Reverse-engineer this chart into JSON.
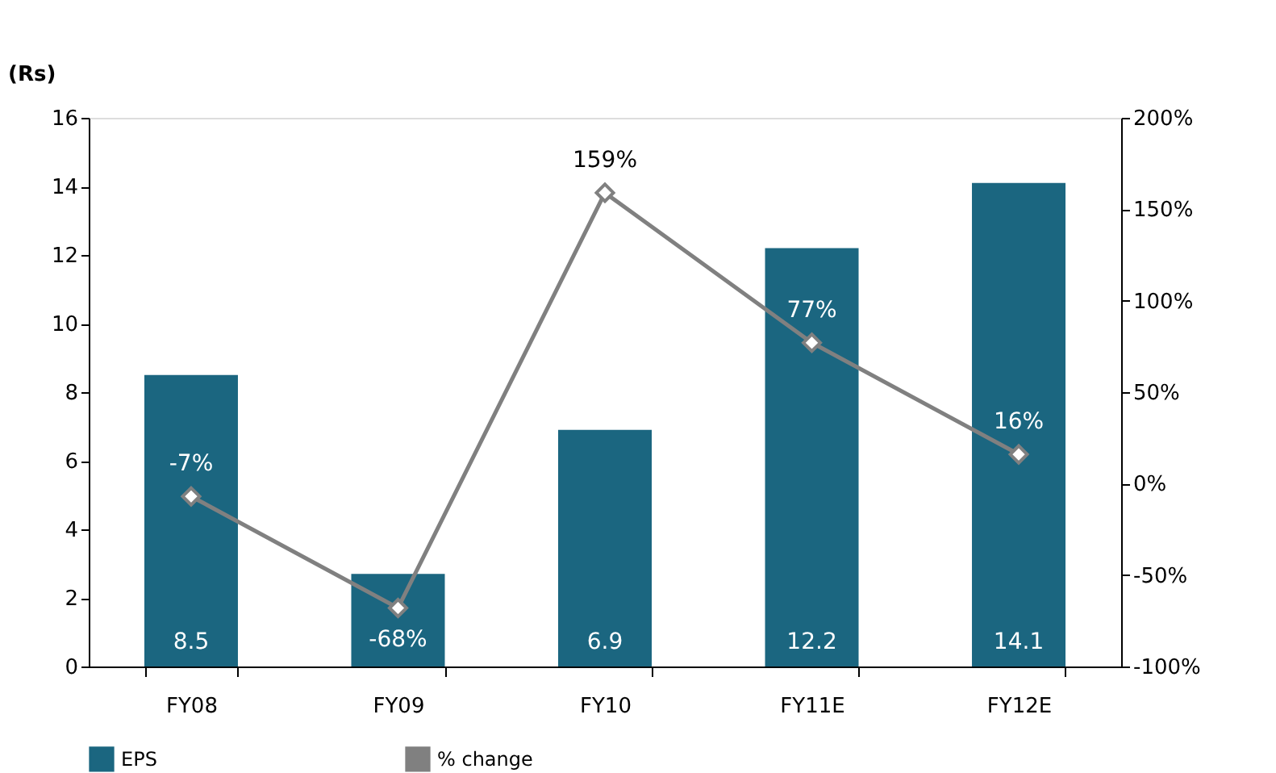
{
  "chart_data": {
    "type": "bar",
    "ylabel": "(Rs)",
    "categories": [
      "FY08",
      "FY09",
      "FY10",
      "FY11E",
      "FY12E"
    ],
    "series": [
      {
        "name": "EPS",
        "color": "#1b6680",
        "values": [
          8.5,
          2.7,
          6.9,
          12.2,
          14.1
        ],
        "value_labels": [
          "8.5",
          null,
          "6.9",
          "12.2",
          "14.1"
        ]
      },
      {
        "name": "% change",
        "type": "line",
        "axis": "y2",
        "color": "#808080",
        "values": [
          -7,
          -68,
          159,
          77,
          16
        ],
        "value_labels": [
          "-7%",
          "-68%",
          "159%",
          "77%",
          "16%"
        ],
        "marker": "diamond"
      }
    ],
    "ylim": [
      0,
      16
    ],
    "yticks": [
      0,
      2,
      4,
      6,
      8,
      10,
      12,
      14,
      16
    ],
    "y2lim": [
      -100,
      200
    ],
    "y2ticks": [
      {
        "value": -100,
        "label": "-100%"
      },
      {
        "value": -50,
        "label": "-50%"
      },
      {
        "value": 0,
        "label": "0%"
      },
      {
        "value": 50,
        "label": "50%"
      },
      {
        "value": 100,
        "label": "100%"
      },
      {
        "value": 150,
        "label": "150%"
      },
      {
        "value": 200,
        "label": "200%"
      }
    ],
    "grid": false,
    "legend": "bottom"
  }
}
